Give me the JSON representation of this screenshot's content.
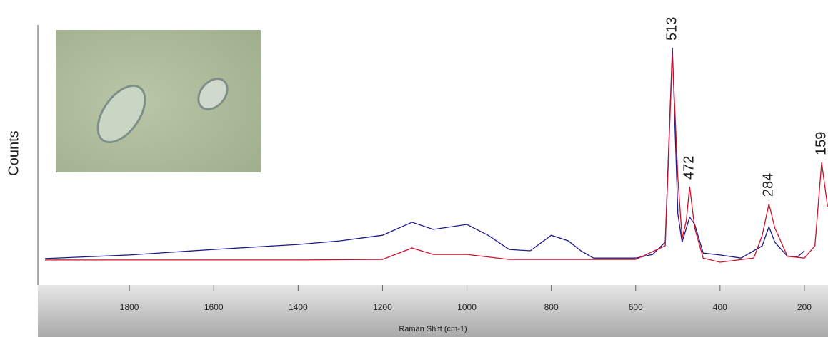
{
  "chart_data": {
    "type": "line",
    "x_label": "Raman Shift (cm-1)",
    "y_label": "Counts",
    "xlim": [
      2017,
      144
    ],
    "xticks": [
      1800,
      1600,
      1400,
      1200,
      1000,
      800,
      600,
      400,
      200
    ],
    "ylim": [
      0,
      100
    ],
    "peak_labels": [
      513,
      472,
      284,
      159
    ],
    "series": [
      {
        "color": "#1a1a8c",
        "x": [
          2000,
          1800,
          1600,
          1400,
          1300,
          1200,
          1130,
          1080,
          1000,
          950,
          900,
          850,
          800,
          760,
          730,
          700,
          600,
          560,
          530,
          513,
          500,
          490,
          472,
          460,
          440,
          400,
          350,
          300,
          284,
          270,
          240,
          215,
          200
        ],
        "values": [
          9.5,
          10.8,
          12.8,
          14.6,
          15.9,
          17.9,
          22.6,
          20,
          21.8,
          17.9,
          12.8,
          12.3,
          17.9,
          15.9,
          12.3,
          9.7,
          9.7,
          11,
          15.4,
          85.4,
          25.6,
          15.4,
          24.4,
          21.8,
          11.5,
          10.8,
          9.7,
          14.1,
          21,
          15.4,
          10.3,
          10.3,
          12.3
        ]
      },
      {
        "color": "#d0102a",
        "x": [
          2000,
          1800,
          1400,
          1200,
          1130,
          1080,
          1000,
          900,
          600,
          530,
          513,
          500,
          490,
          480,
          472,
          460,
          440,
          400,
          320,
          300,
          284,
          270,
          240,
          200,
          175,
          159,
          145
        ],
        "values": [
          9,
          9,
          9,
          9.2,
          13.3,
          11,
          11,
          9.2,
          9.2,
          14.1,
          83.3,
          38.5,
          16.7,
          23.1,
          35.4,
          20.5,
          9.7,
          8.2,
          9.7,
          17.9,
          29.2,
          20.5,
          10.3,
          9.7,
          14.1,
          44.1,
          28.2
        ]
      }
    ]
  }
}
